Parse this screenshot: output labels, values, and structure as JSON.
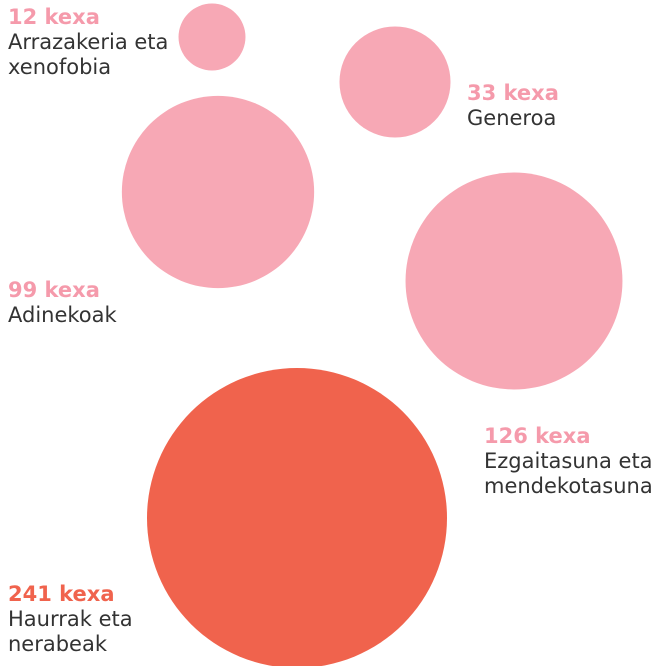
{
  "chart_data": {
    "type": "bubble",
    "categories": [
      "Arrazakeria eta xenofobia",
      "Generoa",
      "Adinekoak",
      "Ezgaitasuna eta mendekotasuna",
      "Haurrak eta nerabeak"
    ],
    "values": [
      12,
      33,
      99,
      126,
      241
    ],
    "value_labels": [
      "12 kexa",
      "33 kexa",
      "99 kexa",
      "126 kexa",
      "241 kexa"
    ],
    "colors": [
      "#f7a8b5",
      "#f7a8b5",
      "#f7a8b5",
      "#f7a8b5",
      "#f0634d"
    ],
    "label_colors": [
      "#f59aab",
      "#f59aab",
      "#f59aab",
      "#f59aab",
      "#f0634d"
    ]
  }
}
